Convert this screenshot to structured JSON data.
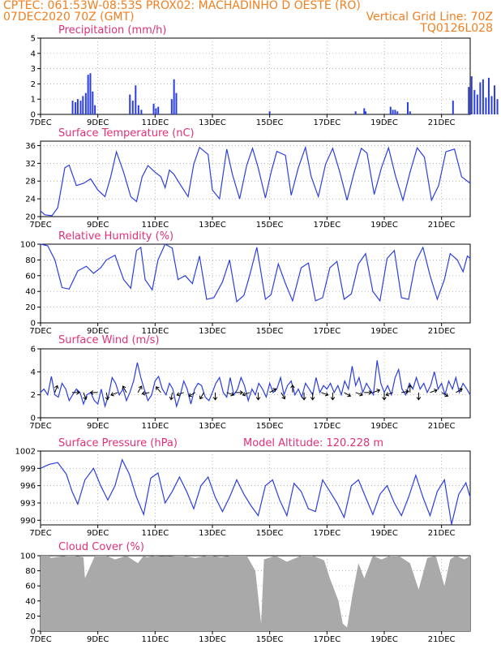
{
  "header": {
    "line1_left": "CPTEC:   061:53W-08:53S   PROX02: MACHADINHO D OESTE (RO)",
    "line2_left": "07DEC2020 70Z (GMT)",
    "line2_right": "Vertical Grid Line: 70Z",
    "line3_right": "TQ0126L028"
  },
  "x_ticks": [
    "7DEC",
    "9DEC",
    "11DEC",
    "13DEC",
    "15DEC",
    "17DEC",
    "19DEC",
    "21DEC"
  ],
  "colors": {
    "line": "#2b3fe0",
    "bar": "#2b3fe0",
    "title": "#e0307a",
    "header": "#f08020",
    "cloud": "#a9a9a9"
  },
  "chart_data": [
    {
      "type": "bar",
      "title": "Precipitation  (mm/h)",
      "ylim": [
        0,
        5
      ],
      "yticks": [
        0,
        1,
        2,
        3,
        4,
        5
      ],
      "x_range_days": [
        0,
        15
      ],
      "x": [
        1.12,
        1.22,
        1.3,
        1.4,
        1.48,
        1.58,
        1.66,
        1.74,
        1.82,
        1.9,
        3.12,
        3.22,
        3.32,
        3.42,
        3.52,
        3.95,
        4.03,
        4.11,
        4.58,
        4.66,
        4.74,
        8.0,
        11.0,
        11.3,
        11.35,
        12.22,
        12.3,
        12.38,
        12.46,
        12.82,
        12.9,
        14.4,
        14.95,
        15.05,
        15.15,
        15.25,
        15.35,
        15.45,
        15.55,
        15.65,
        15.75,
        15.85,
        15.95
      ],
      "values": [
        0.9,
        0.8,
        1.0,
        0.9,
        1.2,
        1.4,
        2.6,
        2.7,
        1.5,
        0.6,
        1.3,
        0.9,
        1.9,
        0.6,
        0.3,
        0.7,
        0.4,
        0.5,
        1.0,
        2.3,
        1.4,
        0.2,
        0.2,
        0.4,
        0.2,
        0.5,
        0.3,
        0.3,
        0.2,
        0.8,
        0.2,
        0.9,
        1.8,
        2.5,
        1.6,
        1.3,
        2.1,
        2.3,
        1.1,
        2.4,
        1.2,
        1.9,
        1.0
      ]
    },
    {
      "type": "line",
      "title": "Surface Temperature  (nC)",
      "ylim": [
        20,
        37
      ],
      "yticks": [
        20,
        24,
        28,
        32,
        36
      ],
      "x": [
        0,
        0.15,
        0.4,
        0.6,
        0.85,
        1,
        1.25,
        1.5,
        1.75,
        2,
        2.25,
        2.45,
        2.65,
        2.9,
        3.15,
        3.35,
        3.55,
        3.75,
        4,
        4.2,
        4.35,
        4.5,
        4.65,
        4.9,
        5.15,
        5.35,
        5.55,
        5.85,
        6,
        6.25,
        6.5,
        6.7,
        6.95,
        7.2,
        7.4,
        7.6,
        7.85,
        8.05,
        8.25,
        8.55,
        8.75,
        9,
        9.25,
        9.45,
        9.7,
        9.95,
        10.2,
        10.45,
        10.7,
        10.95,
        11.2,
        11.4,
        11.65,
        11.9,
        12.15,
        12.4,
        12.65,
        12.9,
        13.15,
        13.4,
        13.65,
        13.9,
        14.15,
        14.45,
        14.7,
        15
      ],
      "values": [
        21.3,
        20.4,
        20.2,
        22,
        31,
        31.6,
        27,
        27.5,
        28.5,
        26,
        24.5,
        29,
        34.6,
        30,
        24.5,
        23.4,
        29,
        31.5,
        30,
        29,
        26.5,
        30.5,
        29.6,
        27,
        24.5,
        31.8,
        35.6,
        34,
        26,
        24,
        35.2,
        29.5,
        24,
        31.6,
        35.4,
        31,
        24.2,
        30,
        34.7,
        33.8,
        24.8,
        31,
        35.6,
        29,
        24.5,
        31.8,
        35.4,
        30,
        23.7,
        30,
        35.4,
        34.3,
        25,
        31,
        35.5,
        29,
        23.7,
        30,
        35.5,
        33.4,
        23.7,
        27,
        34.6,
        35.2,
        29,
        27.5
      ]
    },
    {
      "type": "line",
      "title": "Relative Humidity  (%)",
      "ylim": [
        0,
        100
      ],
      "yticks": [
        0,
        20,
        40,
        60,
        80,
        100
      ],
      "x": [
        0,
        0.25,
        0.5,
        0.75,
        1,
        1.3,
        1.6,
        1.85,
        2.1,
        2.3,
        2.6,
        2.9,
        3.15,
        3.35,
        3.5,
        3.65,
        3.9,
        4.1,
        4.35,
        4.6,
        4.8,
        5.05,
        5.3,
        5.55,
        5.8,
        6.05,
        6.35,
        6.6,
        6.85,
        7.1,
        7.3,
        7.55,
        7.85,
        8.05,
        8.3,
        8.55,
        8.8,
        9.1,
        9.35,
        9.6,
        9.85,
        10.1,
        10.35,
        10.6,
        10.85,
        11.1,
        11.35,
        11.6,
        11.85,
        12.1,
        12.35,
        12.6,
        12.85,
        13.1,
        13.35,
        13.6,
        13.85,
        14.1,
        14.3,
        14.55,
        14.75,
        14.9,
        15
      ],
      "values": [
        100,
        98,
        80,
        45,
        43,
        66,
        72,
        63,
        70,
        80,
        86,
        55,
        44,
        92,
        96,
        55,
        42,
        80,
        100,
        95,
        55,
        60,
        50,
        85,
        30,
        32,
        52,
        80,
        27,
        35,
        60,
        96,
        30,
        36,
        75,
        50,
        28,
        70,
        76,
        28,
        32,
        70,
        78,
        30,
        37,
        75,
        88,
        40,
        28,
        82,
        92,
        32,
        30,
        78,
        96,
        60,
        30,
        55,
        88,
        80,
        65,
        85,
        82
      ]
    },
    {
      "type": "line",
      "title": "Surface Wind  (m/s)",
      "ylim": [
        0,
        6
      ],
      "yticks": [
        0,
        2,
        4,
        6
      ],
      "x": [
        0,
        0.12,
        0.25,
        0.38,
        0.5,
        0.62,
        0.75,
        0.88,
        1,
        1.12,
        1.25,
        1.38,
        1.5,
        1.62,
        1.75,
        1.88,
        2,
        2.12,
        2.25,
        2.38,
        2.5,
        2.62,
        2.75,
        2.88,
        3,
        3.12,
        3.25,
        3.38,
        3.5,
        3.62,
        3.75,
        3.88,
        4,
        4.12,
        4.25,
        4.38,
        4.5,
        4.62,
        4.75,
        4.88,
        5,
        5.12,
        5.25,
        5.38,
        5.5,
        5.62,
        5.75,
        5.88,
        6,
        6.12,
        6.25,
        6.38,
        6.5,
        6.62,
        6.75,
        6.88,
        7,
        7.12,
        7.25,
        7.38,
        7.5,
        7.62,
        7.75,
        7.88,
        8,
        8.12,
        8.25,
        8.38,
        8.5,
        8.62,
        8.75,
        8.88,
        9,
        9.12,
        9.25,
        9.38,
        9.5,
        9.62,
        9.75,
        9.88,
        10,
        10.12,
        10.25,
        10.38,
        10.5,
        10.62,
        10.75,
        10.88,
        11,
        11.12,
        11.25,
        11.38,
        11.5,
        11.62,
        11.75,
        11.88,
        12,
        12.12,
        12.25,
        12.38,
        12.5,
        12.62,
        12.75,
        12.88,
        13,
        13.12,
        13.25,
        13.38,
        13.5,
        13.62,
        13.75,
        13.88,
        14,
        14.12,
        14.25,
        14.38,
        14.5,
        14.62,
        14.75,
        14.88,
        15
      ],
      "values": [
        2.2,
        2.5,
        2.0,
        3.6,
        2.0,
        1.8,
        3.0,
        2.5,
        1.5,
        2.0,
        2.5,
        2.2,
        1.2,
        2.0,
        2.2,
        1.5,
        1.2,
        2.5,
        1.0,
        2.0,
        3.5,
        3.0,
        2.0,
        2.5,
        1.5,
        2.2,
        3.2,
        4.8,
        3.5,
        2.5,
        1.5,
        2.0,
        3.2,
        3.6,
        2.5,
        2.0,
        3.0,
        2.5,
        1.0,
        2.0,
        3.2,
        2.5,
        1.2,
        2.5,
        3.0,
        2.8,
        1.8,
        1.5,
        2.2,
        3.0,
        3.5,
        2.2,
        1.8,
        3.5,
        2.0,
        2.5,
        3.5,
        2.8,
        1.5,
        2.5,
        2.0,
        3.0,
        2.5,
        1.8,
        3.0,
        2.2,
        2.5,
        3.5,
        2.0,
        2.8,
        3.2,
        2.0,
        2.5,
        1.8,
        3.0,
        2.5,
        2.0,
        3.5,
        2.2,
        2.8,
        2.5,
        3.0,
        2.2,
        2.8,
        2.0,
        3.2,
        2.5,
        4.5,
        2.8,
        3.5,
        2.2,
        3.0,
        2.5,
        2.0,
        5.0,
        3.0,
        2.2,
        2.8,
        2.0,
        3.5,
        4.2,
        2.5,
        2.0,
        3.0,
        2.5,
        3.5,
        2.5,
        3.0,
        2.2,
        2.8,
        4.0,
        2.5,
        3.0,
        2.0,
        3.2,
        2.5,
        3.5,
        2.2,
        3.0,
        2.5,
        2.0
      ],
      "arrows_x": [
        0.5,
        1.1,
        1.5,
        2.0,
        2.3,
        2.7,
        3.0,
        3.4,
        3.8,
        4.2,
        4.6,
        5.0,
        5.4,
        5.7,
        6.1,
        6.5,
        6.8,
        7.3,
        7.6,
        8.0,
        8.4,
        8.8,
        9.2,
        9.5,
        9.8,
        10.2,
        10.6,
        11.0,
        11.3,
        11.6,
        12.0,
        12.3,
        12.6,
        12.9,
        13.2,
        13.6,
        14.0,
        14.5
      ],
      "arrows_dir_deg": [
        70,
        0,
        -70,
        180,
        -80,
        200,
        120,
        60,
        190,
        130,
        260,
        200,
        210,
        240,
        -90,
        -20,
        0,
        200,
        -90,
        30,
        -60,
        90,
        -90,
        270,
        -20,
        -90,
        -30,
        -20,
        0,
        20,
        -90,
        200,
        10,
        90,
        -90,
        20,
        -30,
        30
      ]
    },
    {
      "type": "line",
      "title": "Surface Pressure  (hPa)",
      "annotation": "Model Altitude: 120.228  m",
      "ylim": [
        989.2,
        1002
      ],
      "yticks": [
        990,
        993,
        996,
        999,
        1002
      ],
      "x": [
        0,
        0.3,
        0.6,
        0.9,
        1.1,
        1.3,
        1.55,
        1.85,
        2.1,
        2.35,
        2.6,
        2.85,
        3.1,
        3.35,
        3.6,
        3.85,
        4.1,
        4.35,
        4.6,
        4.85,
        5.1,
        5.35,
        5.6,
        5.85,
        6.1,
        6.35,
        6.6,
        6.85,
        7.1,
        7.35,
        7.6,
        7.85,
        8.1,
        8.35,
        8.6,
        8.85,
        9.1,
        9.35,
        9.6,
        9.85,
        10.1,
        10.35,
        10.6,
        10.85,
        11.1,
        11.35,
        11.6,
        11.85,
        12.1,
        12.35,
        12.6,
        12.85,
        13.1,
        13.35,
        13.6,
        13.85,
        14.1,
        14.35,
        14.6,
        14.85,
        15
      ],
      "values": [
        999,
        999.7,
        1000,
        998,
        995,
        992.8,
        997,
        999,
        996,
        993.5,
        996,
        1000.5,
        998,
        994,
        991,
        997.3,
        998.2,
        993,
        995,
        997.5,
        995,
        992,
        996,
        997.5,
        994,
        991.5,
        994,
        997,
        994.5,
        992.5,
        990.8,
        996,
        997,
        993.5,
        990.8,
        996.4,
        995,
        992,
        991.5,
        997,
        995,
        993,
        990.5,
        996,
        997,
        994,
        991,
        994.5,
        996,
        993,
        990.8,
        994,
        997.8,
        994,
        990.8,
        995,
        997,
        989.3,
        994.5,
        996.5,
        994
      ]
    },
    {
      "type": "area",
      "title": "Cloud Cover  (%)",
      "ylim": [
        0,
        100
      ],
      "yticks": [
        0,
        20,
        40,
        60,
        80,
        100
      ],
      "x": [
        0,
        0.3,
        0.35,
        0.9,
        1.2,
        1.5,
        1.55,
        1.9,
        2.3,
        2.6,
        3.0,
        3.4,
        3.6,
        3.7,
        4.0,
        4.4,
        4.7,
        5.0,
        5.4,
        5.8,
        6.0,
        6.3,
        6.6,
        7.2,
        7.5,
        7.7,
        7.8,
        8.2,
        8.6,
        9.1,
        9.5,
        9.9,
        10.1,
        10.4,
        10.55,
        10.7,
        10.9,
        11.1,
        11.3,
        11.6,
        11.9,
        12.2,
        12.5,
        12.9,
        13.2,
        13.5,
        13.8,
        14.1,
        14.3,
        14.5,
        14.8,
        15
      ],
      "values": [
        100,
        100,
        97,
        100,
        100,
        98,
        70,
        100,
        100,
        95,
        100,
        90,
        100,
        98,
        100,
        99,
        100,
        100,
        97,
        100,
        100,
        98,
        100,
        100,
        80,
        10,
        95,
        100,
        92,
        100,
        100,
        94,
        70,
        40,
        10,
        5,
        50,
        90,
        70,
        100,
        95,
        100,
        100,
        90,
        55,
        97,
        100,
        60,
        95,
        100,
        95,
        100
      ]
    }
  ]
}
